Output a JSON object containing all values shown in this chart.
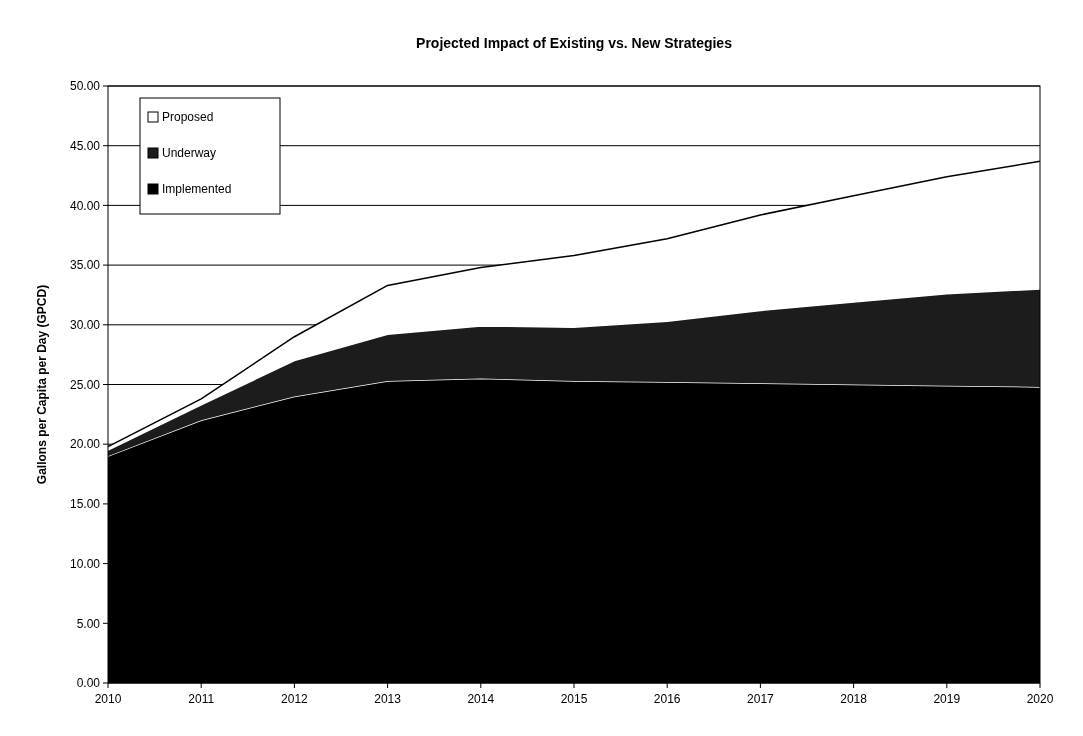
{
  "chart_data": {
    "type": "area",
    "stacked": true,
    "title": "Projected Impact of Existing vs. New Strategies",
    "ylabel": "Gallons per Capita per Day (GPCD)",
    "x": [
      2010,
      2011,
      2012,
      2013,
      2014,
      2015,
      2016,
      2017,
      2018,
      2019,
      2020
    ],
    "xlim": [
      2010,
      2020
    ],
    "xticks": [
      2010,
      2011,
      2012,
      2013,
      2014,
      2015,
      2016,
      2017,
      2018,
      2019,
      2020
    ],
    "ylim": [
      0,
      50
    ],
    "yticks": [
      {
        "value": 0,
        "label": "0.00"
      },
      {
        "value": 5,
        "label": "5.00"
      },
      {
        "value": 10,
        "label": "10.00"
      },
      {
        "value": 15,
        "label": "15.00"
      },
      {
        "value": 20,
        "label": "20.00"
      },
      {
        "value": 25,
        "label": "25.00"
      },
      {
        "value": 30,
        "label": "30.00"
      },
      {
        "value": 35,
        "label": "35.00"
      },
      {
        "value": 40,
        "label": "40.00"
      },
      {
        "value": 45,
        "label": "45.00"
      },
      {
        "value": 50,
        "label": "50.00"
      }
    ],
    "grid": "y",
    "legend": "top left",
    "series": [
      {
        "name": "Implemented",
        "color": "#000000",
        "values": [
          19.0,
          22.0,
          24.0,
          25.3,
          25.5,
          25.3,
          25.2,
          25.1,
          25.0,
          24.9,
          24.8
        ]
      },
      {
        "name": "Underway",
        "color": "#1c1c1c",
        "values": [
          0.5,
          1.3,
          3.0,
          3.9,
          4.4,
          4.5,
          5.1,
          6.1,
          6.9,
          7.7,
          8.2
        ]
      },
      {
        "name": "Proposed",
        "color": "#ffffff",
        "values": [
          0.3,
          0.5,
          2.0,
          4.1,
          4.9,
          6.0,
          6.9,
          8.0,
          8.9,
          9.8,
          10.7
        ]
      }
    ]
  }
}
